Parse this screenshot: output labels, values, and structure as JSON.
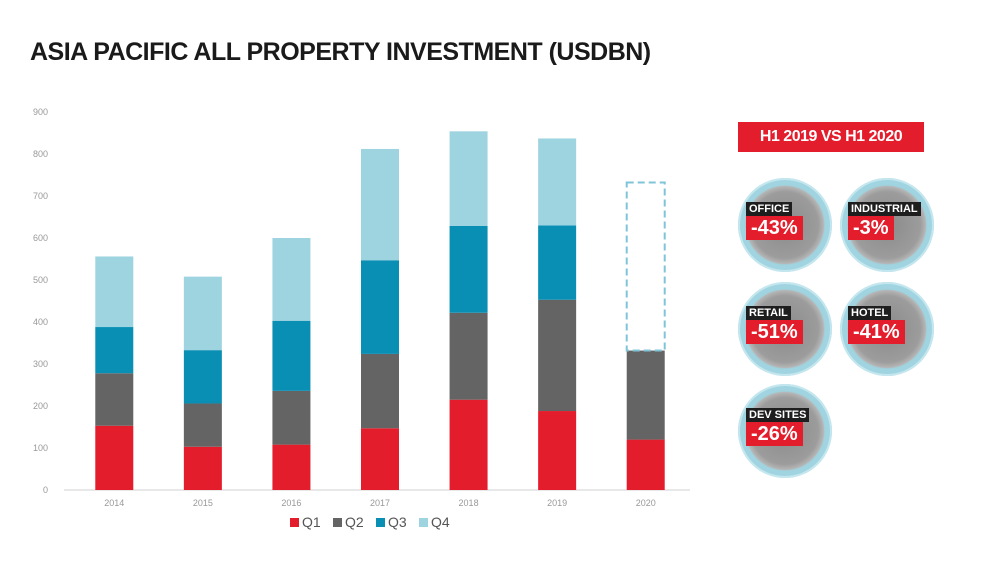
{
  "title": "ASIA PACIFIC ALL PROPERTY INVESTMENT (USDBN)",
  "chart_data": {
    "type": "bar",
    "stacked": true,
    "categories": [
      "2014",
      "2015",
      "2016",
      "2017",
      "2018",
      "2019",
      "2020"
    ],
    "series": [
      {
        "name": "Q1",
        "color": "#e31d2b",
        "values": [
          153,
          103,
          108,
          147,
          215,
          188,
          120
        ]
      },
      {
        "name": "Q2",
        "color": "#646464",
        "values": [
          125,
          103,
          128,
          177,
          207,
          265,
          212
        ]
      },
      {
        "name": "Q3",
        "color": "#0a8fb4",
        "values": [
          110,
          127,
          167,
          223,
          207,
          177,
          null
        ]
      },
      {
        "name": "Q4",
        "color": "#9ed3e0",
        "values": [
          168,
          175,
          197,
          265,
          225,
          207,
          null
        ]
      }
    ],
    "projection": {
      "category": "2020",
      "total": 732,
      "style": "dashed-outline",
      "color": "#7fc4d8"
    },
    "ylim": [
      0,
      900
    ],
    "yticks": [
      "0",
      "100",
      "200",
      "300",
      "400",
      "500",
      "600",
      "700",
      "800",
      "900"
    ],
    "xlabel": "",
    "ylabel": "",
    "grid": false,
    "legend_position": "bottom"
  },
  "side_panel": {
    "header": "H1 2019 VS H1 2020",
    "header_color": "#e31d2b",
    "items": [
      {
        "label": "OFFICE",
        "value": "-43%"
      },
      {
        "label": "INDUSTRIAL",
        "value": "-3%"
      },
      {
        "label": "RETAIL",
        "value": "-51%"
      },
      {
        "label": "HOTEL",
        "value": "-41%"
      },
      {
        "label": "DEV SITES",
        "value": "-26%"
      }
    ]
  }
}
